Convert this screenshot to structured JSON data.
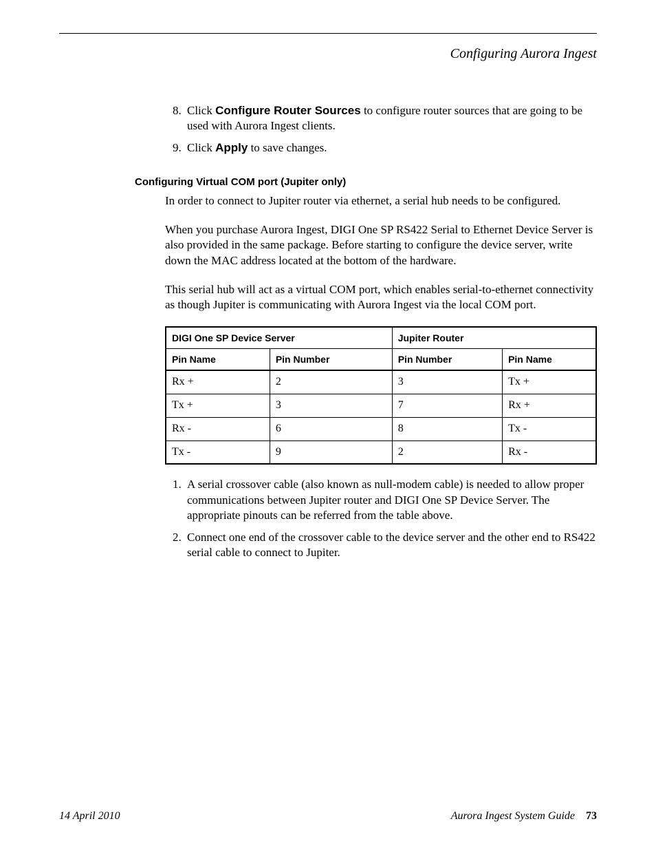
{
  "running_head": "Configuring Aurora Ingest",
  "steps": {
    "start": 8,
    "items": [
      {
        "prefix": "Click ",
        "bold": "Configure Router Sources",
        "suffix": " to configure router sources that are going to be used with Aurora Ingest clients."
      },
      {
        "prefix": "Click ",
        "bold": "Apply",
        "suffix": " to save changes."
      }
    ]
  },
  "section_heading": "Configuring Virtual COM port (Jupiter only)",
  "paragraphs": [
    "In order to connect to Jupiter router via ethernet, a serial hub needs to be configured.",
    "When you purchase Aurora Ingest, DIGI One SP RS422 Serial to Ethernet Device Server is also provided in the same package. Before starting to configure the device server, write down the MAC address located at the bottom of the hardware.",
    "This serial hub will act as a virtual COM port, which enables serial-to-ethernet connectivity as though Jupiter is communicating with Aurora Ingest via the local COM port."
  ],
  "table": {
    "group_headers": [
      "DIGI One SP Device Server",
      "Jupiter Router"
    ],
    "sub_headers": [
      "Pin Name",
      "Pin Number",
      "Pin Number",
      "Pin Name"
    ],
    "rows": [
      [
        "Rx +",
        "2",
        "3",
        "Tx +"
      ],
      [
        "Tx +",
        "3",
        "7",
        "Rx +"
      ],
      [
        "Rx -",
        "6",
        "8",
        "Tx -"
      ],
      [
        "Tx -",
        "9",
        "2",
        "Rx -"
      ]
    ]
  },
  "substeps": [
    "A serial crossover cable (also known as null-modem cable) is needed to allow proper communications between Jupiter router and DIGI One SP Device Server. The appropriate pinouts can be referred from the table above.",
    "Connect one end of the crossover cable to the device server and the other end to RS422 serial cable to connect to Jupiter."
  ],
  "footer": {
    "date": "14 April 2010",
    "doc_title": "Aurora Ingest System Guide",
    "page_number": "73"
  }
}
